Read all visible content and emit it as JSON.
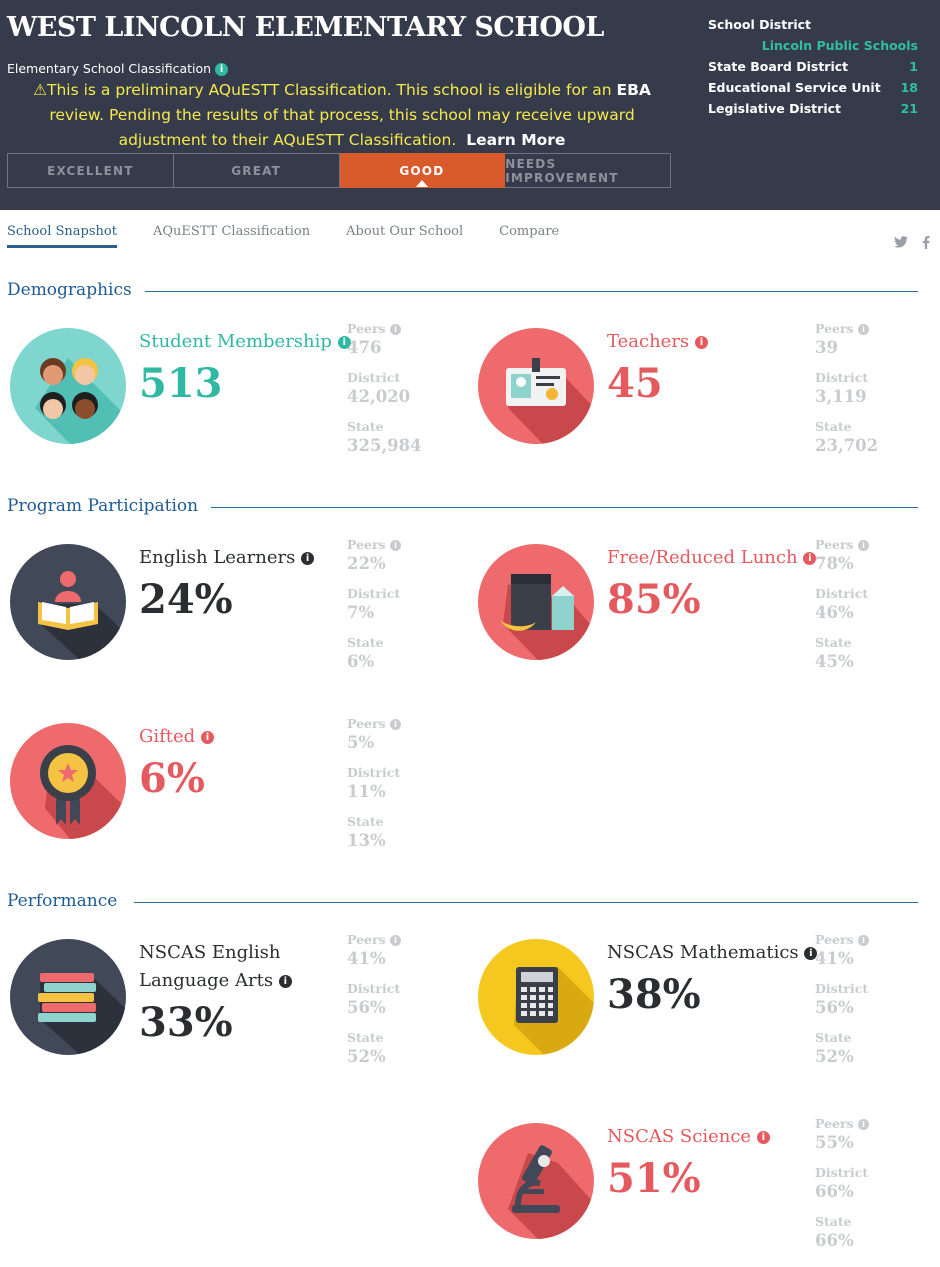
{
  "header": {
    "school_name": "WEST LINCOLN ELEMENTARY SCHOOL",
    "classification_label": "Elementary School Classification",
    "notice_pre": "This is a preliminary AQuESTT Classification. This school is eligible for an ",
    "notice_bold": "EBA",
    "notice_post": " review. Pending the results of that process, this school may receive upward adjustment to their AQuESTT Classification.",
    "learn_more": "Learn More",
    "tabs": [
      "EXCELLENT",
      "GREAT",
      "GOOD",
      "NEEDS IMPROVEMENT"
    ],
    "active_tab": "GOOD"
  },
  "district": {
    "school_district_label": "School District",
    "school_district_value": "Lincoln Public Schools",
    "rows": [
      {
        "label": "State Board District",
        "value": "1"
      },
      {
        "label": "Educational Service Unit",
        "value": "18"
      },
      {
        "label": "Legislative District",
        "value": "21"
      }
    ]
  },
  "nav": {
    "items": [
      "School Snapshot",
      "AQuESTT Classification",
      "About Our School",
      "Compare"
    ],
    "active": "School Snapshot"
  },
  "sections": {
    "demographics": "Demographics",
    "program": "Program Participation",
    "performance": "Performance"
  },
  "stat_labels": {
    "peers": "Peers",
    "district": "District",
    "state": "State"
  },
  "cards": {
    "students": {
      "label": "Student Membership",
      "value": "513",
      "peers": "476",
      "district": "42,020",
      "state": "325,984"
    },
    "teachers": {
      "label": "Teachers",
      "value": "45",
      "peers": "39",
      "district": "3,119",
      "state": "23,702"
    },
    "english_learners": {
      "label": "English Learners",
      "value": "24%",
      "peers": "22%",
      "district": "7%",
      "state": "6%"
    },
    "lunch": {
      "label": "Free/Reduced Lunch",
      "value": "85%",
      "peers": "78%",
      "district": "46%",
      "state": "45%"
    },
    "gifted": {
      "label": "Gifted",
      "value": "6%",
      "peers": "5%",
      "district": "11%",
      "state": "13%"
    },
    "ela": {
      "label_line1": "NSCAS English",
      "label_line2": "Language Arts",
      "value": "33%",
      "peers": "41%",
      "district": "56%",
      "state": "52%"
    },
    "math": {
      "label": "NSCAS Mathematics",
      "value": "38%",
      "peers": "41%",
      "district": "56%",
      "state": "52%"
    },
    "science": {
      "label": "NSCAS Science",
      "value": "51%",
      "peers": "55%",
      "district": "66%",
      "state": "66%"
    }
  },
  "colors": {
    "header_bg": "#353b4a",
    "accent_teal": "#2fb9a2",
    "accent_red": "#e55a5e",
    "active_tab": "#d95a2b",
    "section_blue": "#1e5a94",
    "notice_yellow": "#f5e94c"
  },
  "icons": {
    "info": "info-icon",
    "twitter": "twitter-icon",
    "facebook": "facebook-icon",
    "warning": "warning-icon"
  }
}
